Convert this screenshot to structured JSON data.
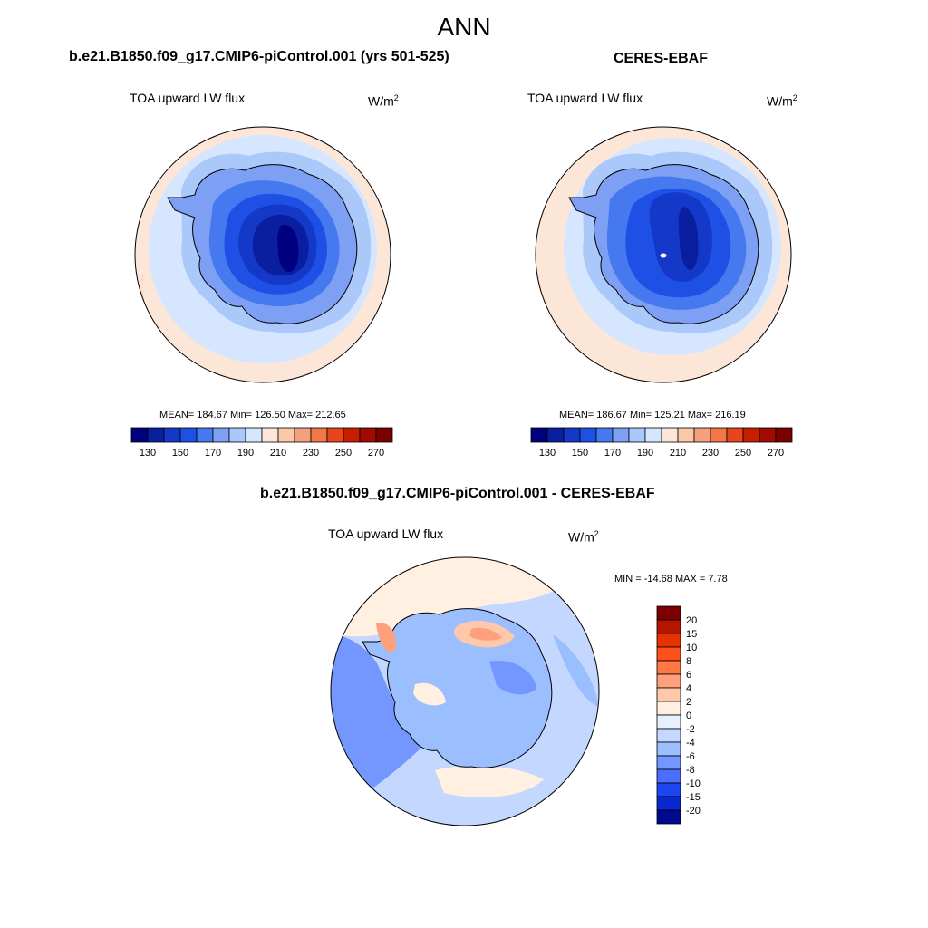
{
  "season": "ANN",
  "panels": [
    {
      "title": "b.e21.B1850.f09_g17.CMIP6-piControl.001 (yrs 501-525)",
      "variable": "TOA upward LW flux",
      "units_base": "W/m",
      "units_exp": "2",
      "stats": "MEAN= 184.67  Min= 126.50  Max= 212.65"
    },
    {
      "title": "CERES-EBAF",
      "variable": "TOA upward LW flux",
      "units_base": "W/m",
      "units_exp": "2",
      "stats": "MEAN= 186.67  Min= 125.21  Max= 216.19"
    },
    {
      "title": "b.e21.B1850.f09_g17.CMIP6-piControl.001 - CERES-EBAF",
      "variable": "TOA upward LW flux",
      "units_base": "W/m",
      "units_exp": "2",
      "stats": "MIN = -14.68 MAX =   7.78"
    }
  ],
  "abs_colorbar": {
    "colors": [
      "#000080",
      "#0a1ea0",
      "#1438c8",
      "#1e50e6",
      "#4678f0",
      "#7da0f5",
      "#aac8fa",
      "#d7e6ff",
      "#fbe6d7",
      "#fbc8aa",
      "#f5a07d",
      "#f07846",
      "#e64619",
      "#c81e00",
      "#a00a00",
      "#7d0000"
    ],
    "tick_labels": [
      "130",
      "150",
      "170",
      "190",
      "210",
      "230",
      "250",
      "270"
    ]
  },
  "diff_colorbar": {
    "colors": [
      "#7d0000",
      "#b41400",
      "#e63200",
      "#ff5019",
      "#ff7846",
      "#ffa07d",
      "#ffc8aa",
      "#fff0e1",
      "#e6f0ff",
      "#c3d7ff",
      "#9bbeff",
      "#7396ff",
      "#4b6eff",
      "#1e46f0",
      "#0a28d2",
      "#000a91"
    ],
    "tick_labels": [
      "20",
      "15",
      "10",
      "8",
      "6",
      "4",
      "2",
      "0",
      "-2",
      "-4",
      "-6",
      "-8",
      "-10",
      "-15",
      "-20"
    ]
  },
  "map_colors": {
    "ocean_outer": "#fbe6d7",
    "ocean_mid": "#d7e6ff",
    "coast_band": "#aac8fa",
    "interior_1": "#7da0f5",
    "interior_2": "#4678f0",
    "interior_3": "#1e50e6",
    "interior_4": "#1438c8",
    "interior_5": "#0a1ea0",
    "interior_6": "#000080",
    "outer_warm": "#fbc8aa",
    "diff_base": "#c3d7ff",
    "diff_neg": "#9bbeff",
    "diff_neg2": "#7396ff",
    "diff_pos": "#fff0e1",
    "diff_pos2": "#ffc8aa",
    "diff_pos3": "#ffa07d"
  }
}
